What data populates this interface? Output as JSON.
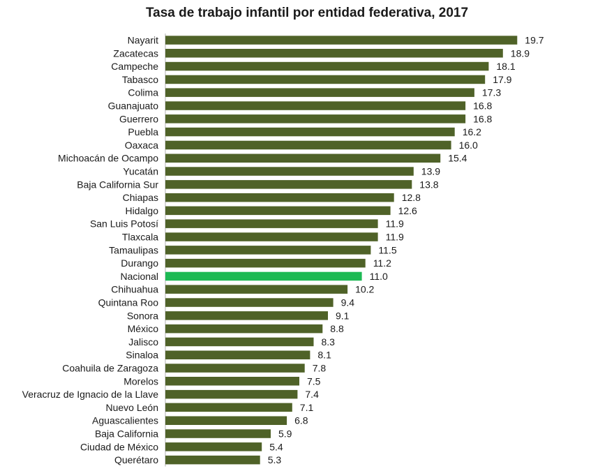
{
  "chart_data": {
    "type": "bar",
    "orientation": "horizontal",
    "title": "Tasa de trabajo infantil por entidad federativa, 2017",
    "xlabel": "",
    "ylabel": "",
    "categories": [
      "Nayarit",
      "Zacatecas",
      "Campeche",
      "Tabasco",
      "Colima",
      "Guanajuato",
      "Guerrero",
      "Puebla",
      "Oaxaca",
      "Michoacán de Ocampo",
      "Yucatán",
      "Baja California Sur",
      "Chiapas",
      "Hidalgo",
      "San Luis Potosí",
      "Tlaxcala",
      "Tamaulipas",
      "Durango",
      "Nacional",
      "Chihuahua",
      "Quintana Roo",
      "Sonora",
      "México",
      "Jalisco",
      "Sinaloa",
      "Coahuila de Zaragoza",
      "Morelos",
      "Veracruz de Ignacio de la Llave",
      "Nuevo León",
      "Aguascalientes",
      "Baja California",
      "Ciudad de México",
      "Querétaro"
    ],
    "values": [
      19.7,
      18.9,
      18.1,
      17.9,
      17.3,
      16.8,
      16.8,
      16.2,
      16.0,
      15.4,
      13.9,
      13.8,
      12.8,
      12.6,
      11.9,
      11.9,
      11.5,
      11.2,
      11.0,
      10.2,
      9.4,
      9.1,
      8.8,
      8.3,
      8.1,
      7.8,
      7.5,
      7.4,
      7.1,
      6.8,
      5.9,
      5.4,
      5.3
    ],
    "value_labels": [
      "19.7",
      "18.9",
      "18.1",
      "17.9",
      "17.3",
      "16.8",
      "16.8",
      "16.2",
      "16.0",
      "15.4",
      "13.9",
      "13.8",
      "12.8",
      "12.6",
      "11.9",
      "11.9",
      "11.5",
      "11.2",
      "11.0",
      "10.2",
      "9.4",
      "9.1",
      "8.8",
      "8.3",
      "8.1",
      "7.8",
      "7.5",
      "7.4",
      "7.1",
      "6.8",
      "5.9",
      "5.4",
      "5.3"
    ],
    "xlim": [
      0,
      20
    ],
    "grid": false,
    "legend": "none",
    "highlight_category": "Nacional",
    "colors": {
      "bar": "#4f6228",
      "highlight": "#1db954",
      "axis": "#b0b0b0"
    }
  }
}
